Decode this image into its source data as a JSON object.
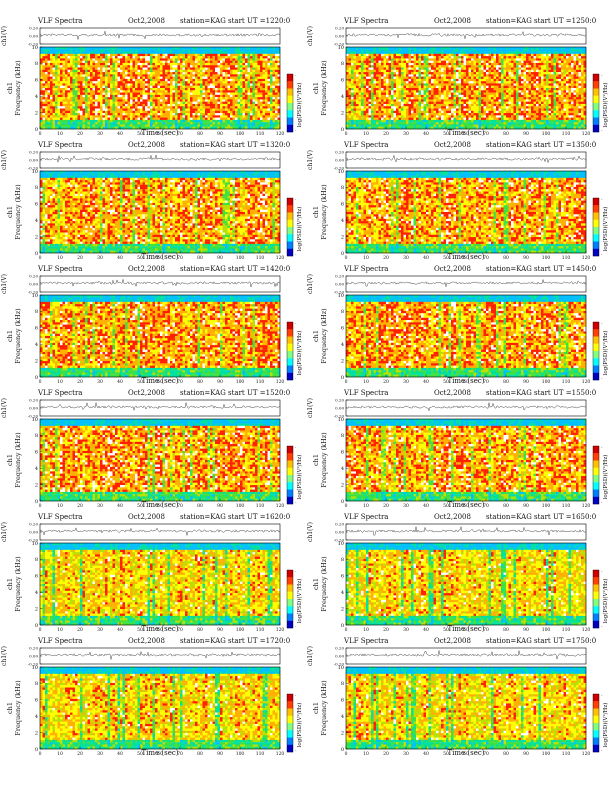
{
  "figure": {
    "panel_title_prefix": "VLF Spectra",
    "date": "Oct2,2008",
    "station": "station=KAG",
    "start_label": "start UT =",
    "waveform_ylabel": "ch1(V)",
    "spectrogram_ylabel_line1": "ch1",
    "spectrogram_ylabel_line2": "Frequency (kHz)",
    "xlabel": "Time (sec)",
    "colorbar_label": "log(PSD)(V²/Hz)"
  },
  "colors": {
    "spectrogram": [
      "#00bfff",
      "#00e0a0",
      "#40e040",
      "#b8e000",
      "#ffff00",
      "#ffb000",
      "#ff2000",
      "#ffffff"
    ],
    "colorbar": [
      "#d00000",
      "#ff4000",
      "#ffc000",
      "#ffff00",
      "#80ff80",
      "#00ffff",
      "#0080ff",
      "#0000c0"
    ],
    "waveform": "#333333"
  },
  "chart_data": [
    {
      "type": "heatmap",
      "start_ut": "1220:0",
      "x_ticks": [
        0,
        10,
        20,
        30,
        40,
        50,
        60,
        70,
        80,
        90,
        100,
        110,
        120
      ],
      "xlim": [
        0,
        120
      ],
      "freq_ticks": [
        0,
        2,
        4,
        6,
        8,
        10
      ],
      "ylim_khz": [
        0,
        10
      ],
      "wave_ticks": [
        "0.20",
        "0.00",
        "-0.20"
      ],
      "wave_ylim": [
        -0.2,
        0.2
      ],
      "colorbar_ticks": [
        "-",
        "-"
      ]
    },
    {
      "type": "heatmap",
      "start_ut": "1250:0",
      "x_ticks": [
        0,
        10,
        20,
        30,
        40,
        50,
        60,
        70,
        80,
        90,
        100,
        110,
        120
      ],
      "xlim": [
        0,
        120
      ],
      "freq_ticks": [
        0,
        2,
        4,
        6,
        8,
        10
      ],
      "ylim_khz": [
        0,
        10
      ],
      "wave_ticks": [
        "0.20",
        "0.00",
        "-0.20"
      ],
      "wave_ylim": [
        -0.2,
        0.2
      ],
      "colorbar_ticks": [
        "-",
        "-"
      ]
    },
    {
      "type": "heatmap",
      "start_ut": "1320:0",
      "x_ticks": [
        0,
        10,
        20,
        30,
        40,
        50,
        60,
        70,
        80,
        90,
        100,
        110,
        120
      ],
      "xlim": [
        0,
        120
      ],
      "freq_ticks": [
        0,
        2,
        4,
        6,
        8,
        10
      ],
      "ylim_khz": [
        0,
        10
      ],
      "wave_ticks": [
        "0.20",
        "0.00",
        "-0.20"
      ],
      "wave_ylim": [
        -0.2,
        0.2
      ],
      "colorbar_ticks": [
        "-",
        "-"
      ]
    },
    {
      "type": "heatmap",
      "start_ut": "1350:0",
      "x_ticks": [
        0,
        10,
        20,
        30,
        40,
        50,
        60,
        70,
        80,
        90,
        100,
        110,
        120
      ],
      "xlim": [
        0,
        120
      ],
      "freq_ticks": [
        0,
        2,
        4,
        6,
        8,
        10
      ],
      "ylim_khz": [
        0,
        10
      ],
      "wave_ticks": [
        "0.20",
        "0.00",
        "-0.20"
      ],
      "wave_ylim": [
        -0.2,
        0.2
      ],
      "colorbar_ticks": [
        "-",
        "-"
      ]
    },
    {
      "type": "heatmap",
      "start_ut": "1420:0",
      "x_ticks": [
        0,
        10,
        20,
        30,
        40,
        50,
        60,
        70,
        80,
        90,
        100,
        110,
        120
      ],
      "xlim": [
        0,
        120
      ],
      "freq_ticks": [
        0,
        2,
        4,
        6,
        8,
        10
      ],
      "ylim_khz": [
        0,
        10
      ],
      "wave_ticks": [
        "0.20",
        "0.00",
        "-0.20"
      ],
      "wave_ylim": [
        -0.2,
        0.2
      ],
      "colorbar_ticks": [
        "-",
        "-"
      ]
    },
    {
      "type": "heatmap",
      "start_ut": "1450:0",
      "x_ticks": [
        0,
        10,
        20,
        30,
        40,
        50,
        60,
        70,
        80,
        90,
        100,
        110,
        120
      ],
      "xlim": [
        0,
        120
      ],
      "freq_ticks": [
        0,
        2,
        4,
        6,
        8,
        10
      ],
      "ylim_khz": [
        0,
        10
      ],
      "wave_ticks": [
        "0.20",
        "0.00",
        "-0.20"
      ],
      "wave_ylim": [
        -0.2,
        0.2
      ],
      "colorbar_ticks": [
        "-",
        "-"
      ]
    },
    {
      "type": "heatmap",
      "start_ut": "1520:0",
      "x_ticks": [
        0,
        10,
        20,
        30,
        40,
        50,
        60,
        70,
        80,
        90,
        100,
        110,
        120
      ],
      "xlim": [
        0,
        120
      ],
      "freq_ticks": [
        0,
        2,
        4,
        6,
        8,
        10
      ],
      "ylim_khz": [
        0,
        10
      ],
      "wave_ticks": [
        "0.20",
        "0.00",
        "-0.20"
      ],
      "wave_ylim": [
        -0.2,
        0.2
      ],
      "colorbar_ticks": [
        "-",
        "-"
      ]
    },
    {
      "type": "heatmap",
      "start_ut": "1550:0",
      "x_ticks": [
        0,
        10,
        20,
        30,
        40,
        50,
        60,
        70,
        80,
        90,
        100,
        110,
        120
      ],
      "xlim": [
        0,
        120
      ],
      "freq_ticks": [
        0,
        2,
        4,
        6,
        8,
        10
      ],
      "ylim_khz": [
        0,
        10
      ],
      "wave_ticks": [
        "0.20",
        "0.00",
        "-0.20"
      ],
      "wave_ylim": [
        -0.2,
        0.2
      ],
      "colorbar_ticks": [
        "-",
        "-"
      ]
    },
    {
      "type": "heatmap",
      "start_ut": "1620:0",
      "x_ticks": [
        0,
        10,
        20,
        30,
        40,
        50,
        60,
        70,
        80,
        90,
        100,
        110,
        120
      ],
      "xlim": [
        0,
        120
      ],
      "freq_ticks": [
        0,
        2,
        4,
        6,
        8,
        10
      ],
      "ylim_khz": [
        0,
        10
      ],
      "wave_ticks": [
        "0.20",
        "0.00",
        "-0.20"
      ],
      "wave_ylim": [
        -0.2,
        0.2
      ],
      "colorbar_ticks": [
        "-",
        "-"
      ]
    },
    {
      "type": "heatmap",
      "start_ut": "1650:0",
      "x_ticks": [
        0,
        10,
        20,
        30,
        40,
        50,
        60,
        70,
        80,
        90,
        100,
        110,
        120
      ],
      "xlim": [
        0,
        120
      ],
      "freq_ticks": [
        0,
        2,
        4,
        6,
        8,
        10
      ],
      "ylim_khz": [
        0,
        10
      ],
      "wave_ticks": [
        "0.20",
        "0.00",
        "-0.20"
      ],
      "wave_ylim": [
        -0.2,
        0.2
      ],
      "colorbar_ticks": [
        "-",
        "-"
      ]
    },
    {
      "type": "heatmap",
      "start_ut": "1720:0",
      "x_ticks": [
        0,
        10,
        20,
        30,
        40,
        50,
        60,
        70,
        80,
        90,
        100,
        110,
        120
      ],
      "xlim": [
        0,
        120
      ],
      "freq_ticks": [
        0,
        2,
        4,
        6,
        8,
        10
      ],
      "ylim_khz": [
        0,
        10
      ],
      "wave_ticks": [
        "0.20",
        "0.00",
        "-0.20"
      ],
      "wave_ylim": [
        -0.2,
        0.2
      ],
      "colorbar_ticks": [
        "-",
        "-"
      ]
    },
    {
      "type": "heatmap",
      "start_ut": "1750:0",
      "x_ticks": [
        0,
        10,
        20,
        30,
        40,
        50,
        60,
        70,
        80,
        90,
        100,
        110,
        120
      ],
      "xlim": [
        0,
        120
      ],
      "freq_ticks": [
        0,
        2,
        4,
        6,
        8,
        10
      ],
      "ylim_khz": [
        0,
        10
      ],
      "wave_ticks": [
        "0.20",
        "0.00",
        "-0.20"
      ],
      "wave_ylim": [
        -0.2,
        0.2
      ],
      "colorbar_ticks": [
        "-",
        "-"
      ]
    }
  ]
}
